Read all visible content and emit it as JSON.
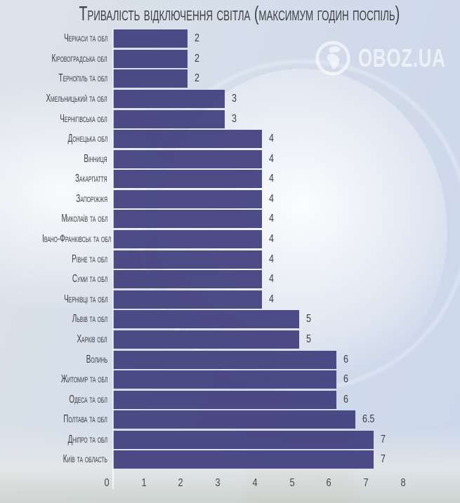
{
  "title": "Тривалість відключення світла (максимум годин поспіль)",
  "watermark": {
    "brand": "OBOZ.UA",
    "icon": "globe-icon",
    "color": "#ffffff"
  },
  "colors": {
    "bar": "#47467f",
    "text": "#3b3c3e",
    "axis_line": "#f4f8fd"
  },
  "chart_data": {
    "type": "bar",
    "orientation": "horizontal",
    "title": "Тривалість відключення світла (максимум годин поспіль)",
    "xlabel": "",
    "ylabel": "",
    "xlim": [
      0,
      8
    ],
    "grid": false,
    "legend": false,
    "categories": [
      "Черкаси та обл",
      "Кіровоградська обл",
      "Тернопіль та обл",
      "Хмельницький та обл",
      "Чернігівська обл",
      "Донецька обл",
      "Вінниця",
      "Закарпаття",
      "Запоріжжя",
      "Миколаїв та обл",
      "Івано-Франківськ та обл",
      "Рівне та обл",
      "Суми та обл",
      "Чернівці та обл",
      "Львів та обл",
      "Харків обл",
      "Волинь",
      "Житомир та обл",
      "Одеса та обл",
      "Полтава та обл",
      "Дніпро та обл",
      "Київ та область"
    ],
    "values": [
      2,
      2,
      2,
      3,
      3,
      4,
      4,
      4,
      4,
      4,
      4,
      4,
      4,
      4,
      5,
      5,
      6,
      6,
      6,
      6.5,
      7,
      7
    ],
    "value_labels": [
      "2",
      "2",
      "2",
      "3",
      "3",
      "4",
      "4",
      "4",
      "4",
      "4",
      "4",
      "4",
      "4",
      "4",
      "5",
      "5",
      "6",
      "6",
      "6",
      "6.5",
      "7",
      "7"
    ],
    "x_ticks": [
      "0",
      "1",
      "2",
      "3",
      "4",
      "5",
      "6",
      "7",
      "8"
    ]
  }
}
